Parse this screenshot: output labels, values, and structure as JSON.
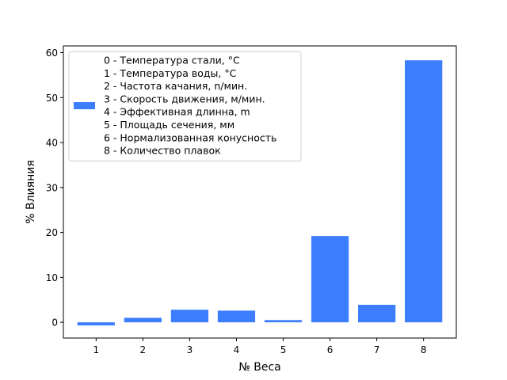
{
  "chart_data": {
    "type": "bar",
    "title": "",
    "xlabel": "№ Веса",
    "ylabel": "% Влияния",
    "categories": [
      "1",
      "2",
      "3",
      "4",
      "5",
      "6",
      "7",
      "8"
    ],
    "values": [
      -0.7,
      1.0,
      2.8,
      2.6,
      0.5,
      19.2,
      3.9,
      58.3
    ],
    "ylim": [
      -3.5,
      61.5
    ],
    "yticks": [
      0,
      10,
      20,
      30,
      40,
      50,
      60
    ],
    "bar_color": "#3d7eff",
    "grid": false,
    "legend": {
      "placement": "upper-left",
      "lines": [
        "0 - Температура стали, °C",
        "1 - Температура воды, °C",
        "2 - Частота качания, n/мин.",
        "3 - Скорость движения, м/мин.",
        "4 - Эффективная длинна, m",
        "5 - Площадь сечения, мм",
        "6 - Нормализованная конусность",
        "8 - Количество плавок"
      ]
    }
  }
}
